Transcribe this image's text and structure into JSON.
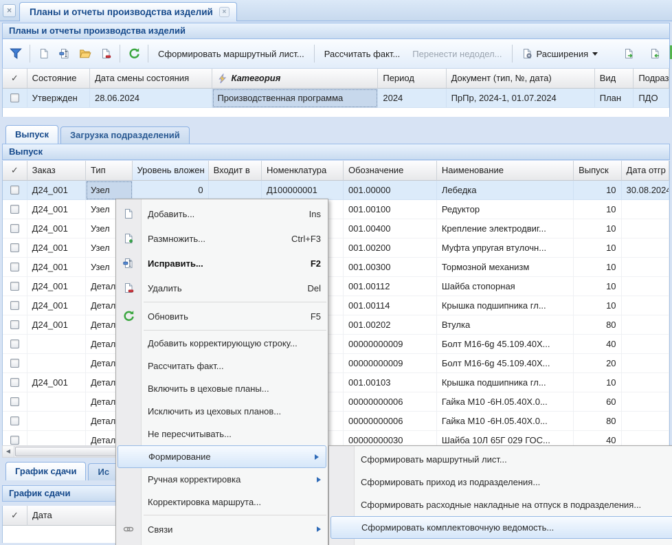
{
  "colors": {
    "accent_text": "#15498b",
    "selection_bg": "#dcebfa",
    "menu_highlight_border": "#96b9e4",
    "disabled_text": "#9aa4b0",
    "toolbar_green": "#54b44c"
  },
  "glyphs": {
    "check": "✓",
    "close": "×",
    "left_arrow": "◀"
  },
  "window": {
    "tab_title": "Планы и отчеты производства изделий",
    "panel_title": "Планы и отчеты производства изделий"
  },
  "toolbar": {
    "buttons": [
      {
        "label": "Сформировать маршрутный лист..."
      },
      {
        "label": "Рассчитать факт..."
      },
      {
        "label": "Перенести недодел..."
      }
    ],
    "extensions_label": "Расширения"
  },
  "plans_table": {
    "columns": [
      "Состояние",
      "Дата смены состояния",
      "Категория",
      "Период",
      "Документ (тип, №, дата)",
      "Вид",
      "Подраз"
    ],
    "row": {
      "state": "Утвержден",
      "state_date": "28.06.2024",
      "category": "Производственная программа",
      "period": "2024",
      "document": "ПрПр, 2024-1, 01.07.2024",
      "kind": "План",
      "department": "ПДО"
    }
  },
  "view_tabs": {
    "active": "Выпуск",
    "inactive": "Загрузка подразделений"
  },
  "output_panel_title": "Выпуск",
  "output_table": {
    "columns": [
      "Заказ",
      "Тип",
      "Уровень вложен",
      "Входит в",
      "Номенклатура",
      "Обозначение",
      "Наименование",
      "Выпуск",
      "Дата отгр"
    ],
    "rows": [
      [
        "Д24_001",
        "Узел",
        "0",
        "",
        "Д100000001",
        "001.00000",
        "Лебедка",
        "10",
        "30.08.2024"
      ],
      [
        "Д24_001",
        "Узел",
        "",
        "",
        "",
        "001.00100",
        "Редуктор",
        "10",
        ""
      ],
      [
        "Д24_001",
        "Узел",
        "",
        "",
        "",
        "001.00400",
        "Крепление электродвиг...",
        "10",
        ""
      ],
      [
        "Д24_001",
        "Узел",
        "",
        "",
        "",
        "001.00200",
        "Муфта упругая втулочн...",
        "10",
        ""
      ],
      [
        "Д24_001",
        "Узел",
        "",
        "",
        "",
        "001.00300",
        "Тормозной механизм",
        "10",
        ""
      ],
      [
        "Д24_001",
        "Детал",
        "",
        "",
        "",
        "001.00112",
        "Шайба стопорная",
        "10",
        ""
      ],
      [
        "Д24_001",
        "Детал",
        "",
        "",
        "",
        "001.00114",
        "Крышка подшипника гл...",
        "10",
        ""
      ],
      [
        "Д24_001",
        "Детал",
        "",
        "",
        "",
        "001.00202",
        "Втулка",
        "80",
        ""
      ],
      [
        "",
        "Детал",
        "",
        "",
        "",
        "00000000009",
        "Болт М16-6g 45.109.40Х...",
        "40",
        ""
      ],
      [
        "",
        "Детал",
        "",
        "",
        "",
        "00000000009",
        "Болт М16-6g 45.109.40Х...",
        "20",
        ""
      ],
      [
        "Д24_001",
        "Детал",
        "",
        "",
        "",
        "001.00103",
        "Крышка подшипника гл...",
        "10",
        ""
      ],
      [
        "",
        "Детал",
        "",
        "",
        "",
        "00000000006",
        "Гайка М10 -6Н.05.40Х.0...",
        "60",
        ""
      ],
      [
        "",
        "Детал",
        "",
        "",
        "",
        "00000000006",
        "Гайка М10 -6Н.05.40Х.0...",
        "80",
        ""
      ],
      [
        "",
        "Детал",
        "",
        "",
        "",
        "00000000030",
        "Шайба 10Л 65Г 029 ГОС...",
        "40",
        ""
      ]
    ]
  },
  "bottom_tabs": {
    "active": "График сдачи",
    "partial": "Ис"
  },
  "bottom_panel_title": "График сдачи",
  "schedule_table": {
    "date_column": "Дата"
  },
  "context_menu": {
    "items": [
      {
        "label": "Добавить...",
        "shortcut": "Ins",
        "icon": "doc-new-icon"
      },
      {
        "label": "Размножить...",
        "shortcut": "Ctrl+F3",
        "icon": "doc-duplicate-icon"
      },
      {
        "label": "Исправить...",
        "shortcut": "F2",
        "icon": "doc-edit-icon",
        "bold": true
      },
      {
        "label": "Удалить",
        "shortcut": "Del",
        "icon": "doc-delete-icon"
      },
      {
        "sep": true
      },
      {
        "label": "Обновить",
        "shortcut": "F5",
        "icon": "refresh-icon"
      },
      {
        "sep": true
      },
      {
        "label": "Добавить корректирующую строку..."
      },
      {
        "label": "Рассчитать факт..."
      },
      {
        "label": "Включить в цеховые планы..."
      },
      {
        "label": "Исключить из цеховых планов..."
      },
      {
        "label": "Не пересчитывать..."
      },
      {
        "label": "Формирование",
        "arrow": true,
        "highlighted": true
      },
      {
        "label": "Ручная корректировка",
        "arrow": true
      },
      {
        "label": "Корректировка маршрута..."
      },
      {
        "sep": true
      },
      {
        "label": "Связи",
        "arrow": true,
        "icon": "links-icon"
      },
      {
        "partial": true,
        "icon": "refresh-icon"
      }
    ]
  },
  "submenu": {
    "items": [
      {
        "label": "Сформировать маршрутный лист..."
      },
      {
        "label": "Сформировать приход из подразделения..."
      },
      {
        "label": "Сформировать расходные накладные на отпуск в подразделения..."
      },
      {
        "label": "Сформировать комплектовочную ведомость...",
        "highlighted": true
      }
    ]
  }
}
